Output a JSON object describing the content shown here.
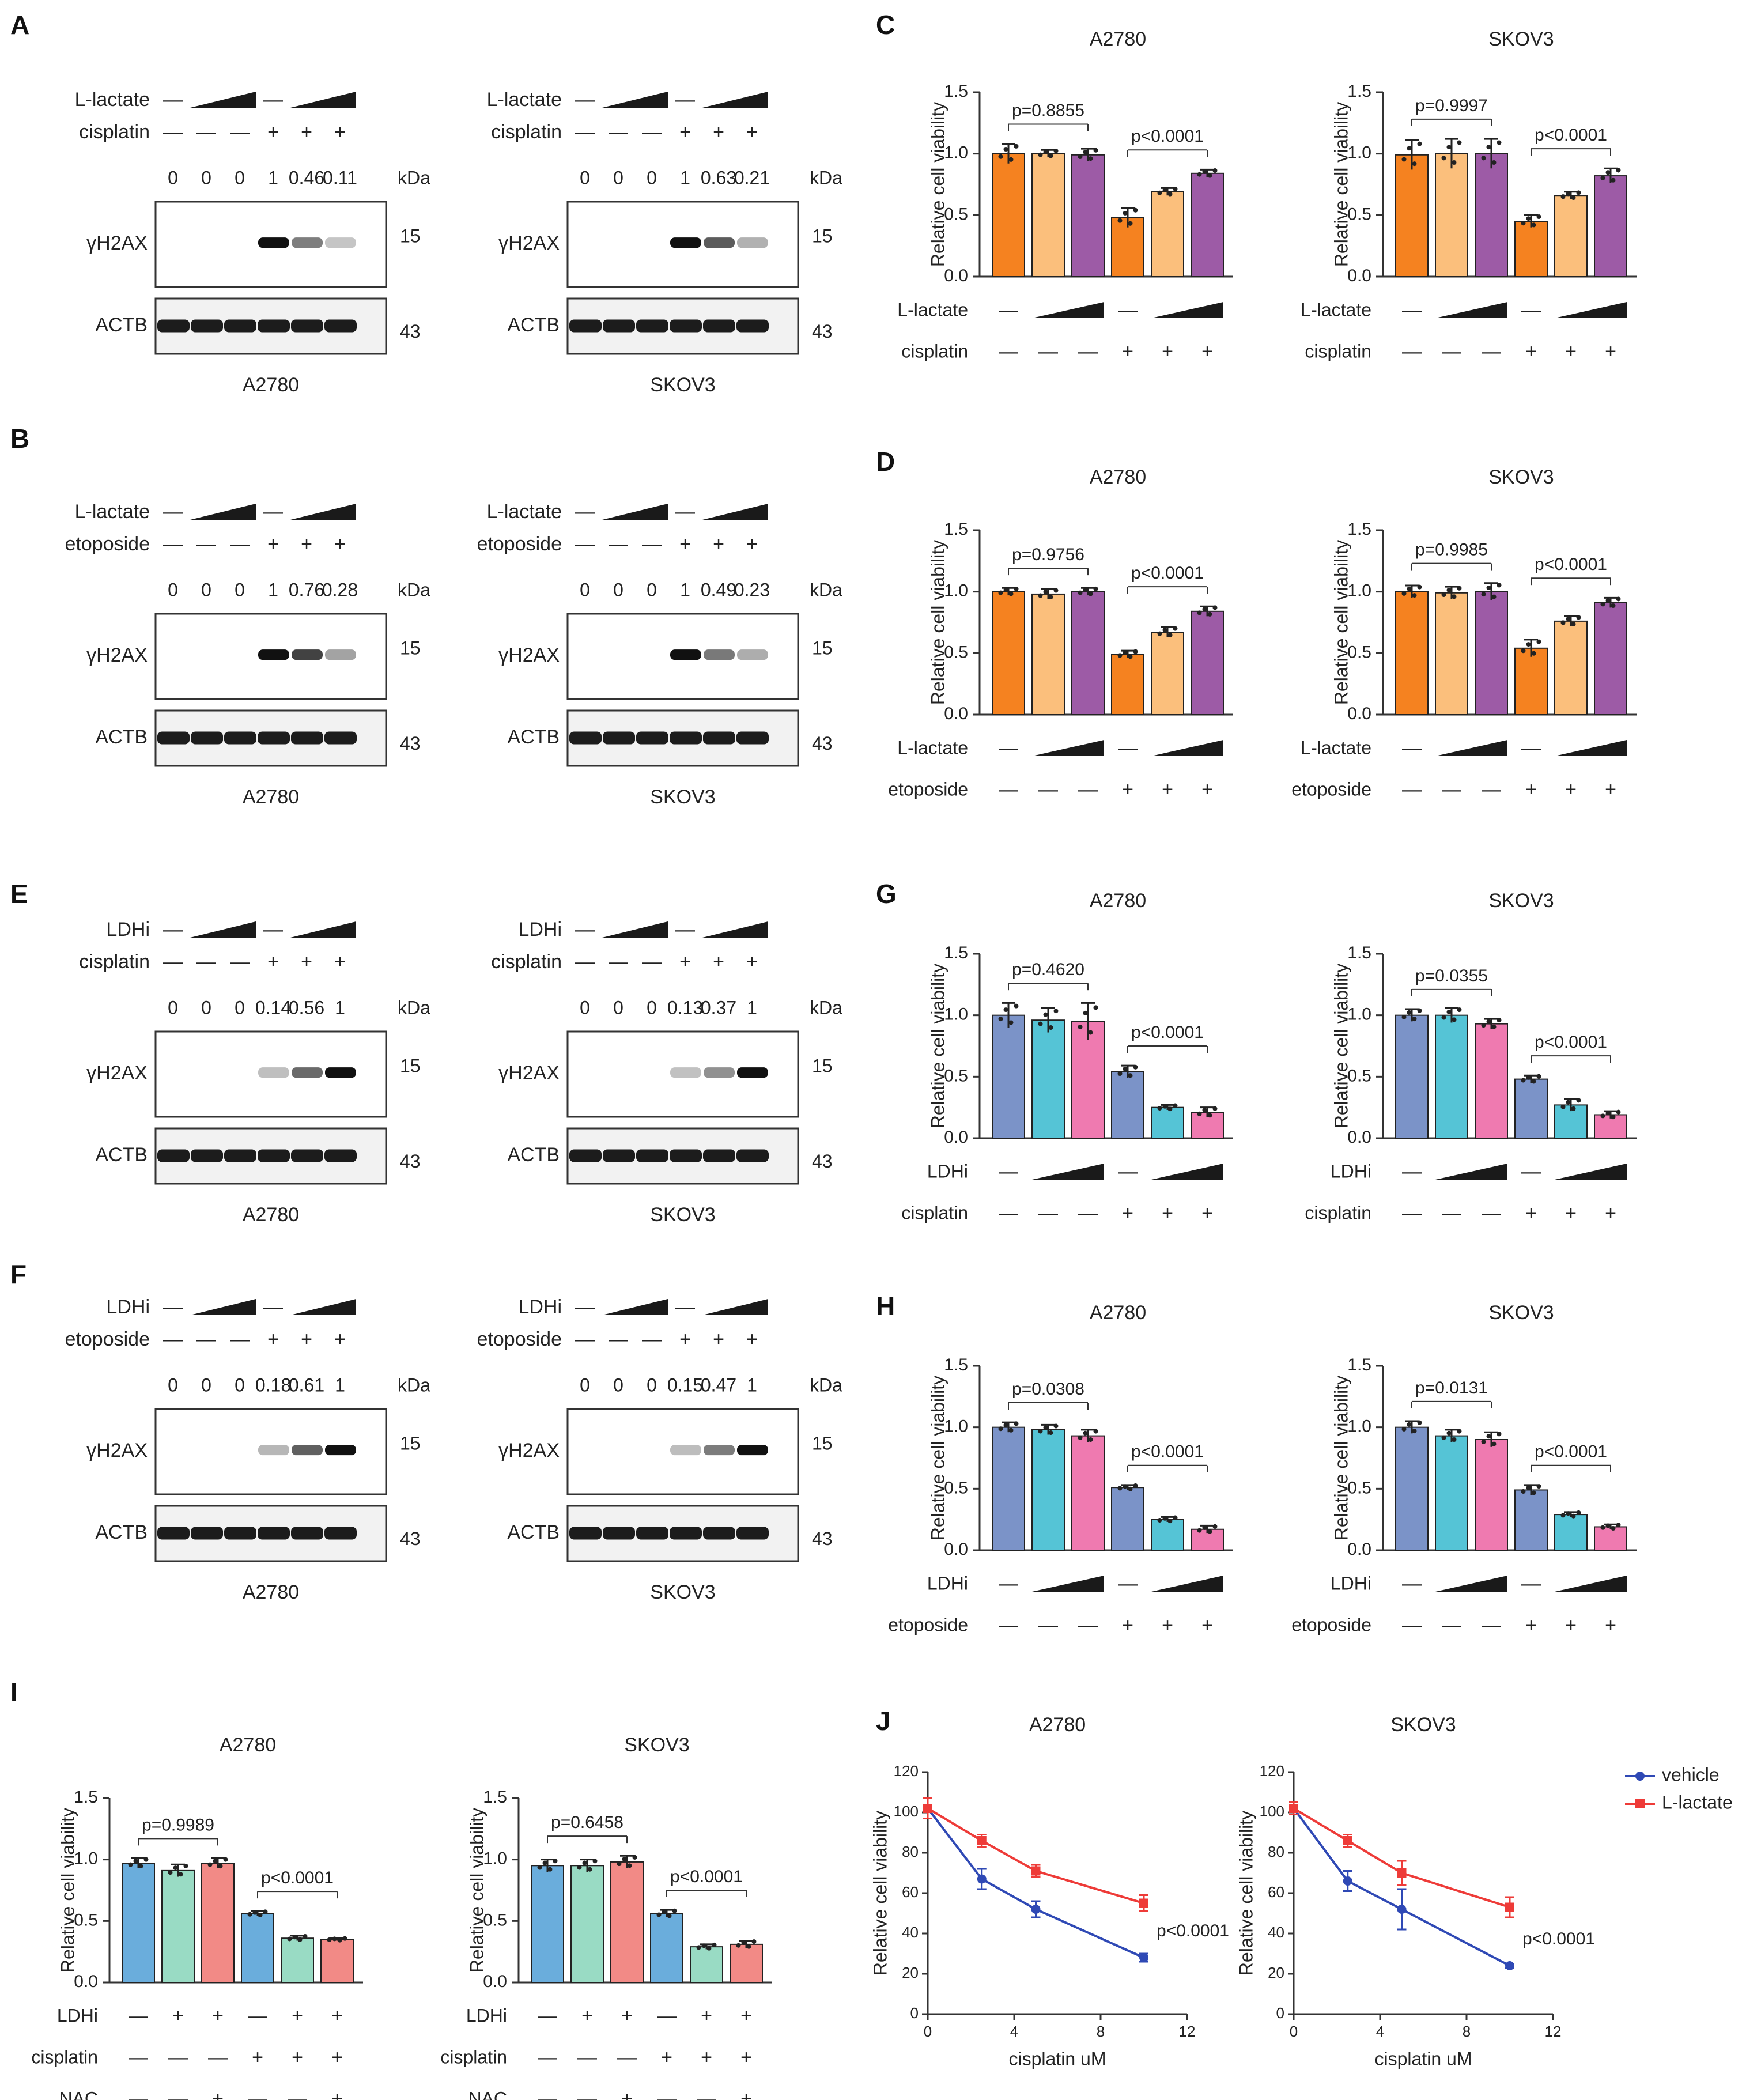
{
  "panel_letters": [
    "A",
    "B",
    "C",
    "D",
    "E",
    "F",
    "G",
    "H",
    "I",
    "J"
  ],
  "units": {
    "kda": "kDa"
  },
  "chart_data": [
    {
      "id": "A",
      "type": "western_blot",
      "blots": [
        {
          "title": "A2780",
          "row_labels": [
            "L-lactate",
            "cisplatin"
          ],
          "rows": [
            [
              "—",
              "ramp",
              "—",
              "ramp"
            ],
            [
              "—",
              "—",
              "—",
              "+",
              "+",
              "+"
            ]
          ],
          "quant": [
            "0",
            "0",
            "0",
            "1",
            "0.46",
            "0.11"
          ],
          "bands": [
            "γH2AX",
            "ACTB"
          ],
          "band_kda": [
            "15",
            "43"
          ],
          "intensity": [
            0,
            0,
            0,
            1,
            0.46,
            0.11
          ]
        },
        {
          "title": "SKOV3",
          "row_labels": [
            "L-lactate",
            "cisplatin"
          ],
          "rows": [
            [
              "—",
              "ramp",
              "—",
              "ramp"
            ],
            [
              "—",
              "—",
              "—",
              "+",
              "+",
              "+"
            ]
          ],
          "quant": [
            "0",
            "0",
            "0",
            "1",
            "0.63",
            "0.21"
          ],
          "bands": [
            "γH2AX",
            "ACTB"
          ],
          "band_kda": [
            "15",
            "43"
          ],
          "intensity": [
            0,
            0,
            0,
            1,
            0.63,
            0.21
          ]
        }
      ]
    },
    {
      "id": "B",
      "type": "western_blot",
      "blots": [
        {
          "title": "A2780",
          "row_labels": [
            "L-lactate",
            "etoposide"
          ],
          "rows": [
            [
              "—",
              "ramp",
              "—",
              "ramp"
            ],
            [
              "—",
              "—",
              "—",
              "+",
              "+",
              "+"
            ]
          ],
          "quant": [
            "0",
            "0",
            "0",
            "1",
            "0.76",
            "0.28"
          ],
          "bands": [
            "γH2AX",
            "ACTB"
          ],
          "band_kda": [
            "15",
            "43"
          ],
          "intensity": [
            0,
            0,
            0,
            1,
            0.76,
            0.28
          ]
        },
        {
          "title": "SKOV3",
          "row_labels": [
            "L-lactate",
            "etoposide"
          ],
          "rows": [
            [
              "—",
              "ramp",
              "—",
              "ramp"
            ],
            [
              "—",
              "—",
              "—",
              "+",
              "+",
              "+"
            ]
          ],
          "quant": [
            "0",
            "0",
            "0",
            "1",
            "0.49",
            "0.23"
          ],
          "bands": [
            "γH2AX",
            "ACTB"
          ],
          "band_kda": [
            "15",
            "43"
          ],
          "intensity": [
            0,
            0,
            0,
            1,
            0.49,
            0.23
          ]
        }
      ]
    },
    {
      "id": "E",
      "type": "western_blot",
      "blots": [
        {
          "title": "A2780",
          "row_labels": [
            "LDHi",
            "cisplatin"
          ],
          "rows": [
            [
              "—",
              "ramp",
              "—",
              "ramp"
            ],
            [
              "—",
              "—",
              "—",
              "+",
              "+",
              "+"
            ]
          ],
          "quant": [
            "0",
            "0",
            "0",
            "0.14",
            "0.56",
            "1"
          ],
          "bands": [
            "γH2AX",
            "ACTB"
          ],
          "band_kda": [
            "15",
            "43"
          ],
          "intensity": [
            0,
            0,
            0,
            0.14,
            0.56,
            1
          ]
        },
        {
          "title": "SKOV3",
          "row_labels": [
            "LDHi",
            "cisplatin"
          ],
          "rows": [
            [
              "—",
              "ramp",
              "—",
              "ramp"
            ],
            [
              "—",
              "—",
              "—",
              "+",
              "+",
              "+"
            ]
          ],
          "quant": [
            "0",
            "0",
            "0",
            "0.13",
            "0.37",
            "1"
          ],
          "bands": [
            "γH2AX",
            "ACTB"
          ],
          "band_kda": [
            "15",
            "43"
          ],
          "intensity": [
            0,
            0,
            0,
            0.13,
            0.37,
            1
          ]
        }
      ]
    },
    {
      "id": "F",
      "type": "western_blot",
      "blots": [
        {
          "title": "A2780",
          "row_labels": [
            "LDHi",
            "etoposide"
          ],
          "rows": [
            [
              "—",
              "ramp",
              "—",
              "ramp"
            ],
            [
              "—",
              "—",
              "—",
              "+",
              "+",
              "+"
            ]
          ],
          "quant": [
            "0",
            "0",
            "0",
            "0.18",
            "0.61",
            "1"
          ],
          "bands": [
            "γH2AX",
            "ACTB"
          ],
          "band_kda": [
            "15",
            "43"
          ],
          "intensity": [
            0,
            0,
            0,
            0.18,
            0.61,
            1
          ]
        },
        {
          "title": "SKOV3",
          "row_labels": [
            "LDHi",
            "etoposide"
          ],
          "rows": [
            [
              "—",
              "ramp",
              "—",
              "ramp"
            ],
            [
              "—",
              "—",
              "—",
              "+",
              "+",
              "+"
            ]
          ],
          "quant": [
            "0",
            "0",
            "0",
            "0.15",
            "0.47",
            "1"
          ],
          "bands": [
            "γH2AX",
            "ACTB"
          ],
          "band_kda": [
            "15",
            "43"
          ],
          "intensity": [
            0,
            0,
            0,
            0.15,
            0.47,
            1
          ]
        }
      ]
    },
    {
      "id": "C",
      "type": "bar",
      "ylabel": "Relative cell viability",
      "ylim": [
        0,
        1.5
      ],
      "yticks": [
        "0.0",
        "0.5",
        "1.0",
        "1.5"
      ],
      "charts": [
        {
          "title": "A2780",
          "values": [
            1.0,
            1.0,
            0.99,
            0.48,
            0.69,
            0.84
          ],
          "errors": [
            0.08,
            0.03,
            0.05,
            0.08,
            0.03,
            0.03
          ],
          "p_values": [
            "p=0.8855",
            "p<0.0001"
          ],
          "row_labels": [
            "L-lactate",
            "cisplatin"
          ],
          "rows": [
            [
              "—",
              "ramp",
              "—",
              "ramp"
            ],
            [
              "—",
              "—",
              "—",
              "+",
              "+",
              "+"
            ]
          ]
        },
        {
          "title": "SKOV3",
          "values": [
            0.99,
            1.0,
            1.0,
            0.45,
            0.66,
            0.82
          ],
          "errors": [
            0.12,
            0.12,
            0.12,
            0.05,
            0.03,
            0.06
          ],
          "p_values": [
            "p=0.9997",
            "p<0.0001"
          ],
          "row_labels": [
            "L-lactate",
            "cisplatin"
          ],
          "rows": [
            [
              "—",
              "ramp",
              "—",
              "ramp"
            ],
            [
              "—",
              "—",
              "—",
              "+",
              "+",
              "+"
            ]
          ]
        }
      ],
      "colors": [
        "#f58220",
        "#fbbf7c",
        "#9d5ba6",
        "#f58220",
        "#fbbf7c",
        "#9d5ba6"
      ]
    },
    {
      "id": "D",
      "type": "bar",
      "ylabel": "Relative cell viability",
      "ylim": [
        0,
        1.5
      ],
      "yticks": [
        "0.0",
        "0.5",
        "1.0",
        "1.5"
      ],
      "charts": [
        {
          "title": "A2780",
          "values": [
            1.0,
            0.98,
            1.0,
            0.49,
            0.67,
            0.84
          ],
          "errors": [
            0.03,
            0.04,
            0.03,
            0.03,
            0.04,
            0.04
          ],
          "p_values": [
            "p=0.9756",
            "p<0.0001"
          ],
          "row_labels": [
            "L-lactate",
            "etoposide"
          ],
          "rows": [
            [
              "—",
              "ramp",
              "—",
              "ramp"
            ],
            [
              "—",
              "—",
              "—",
              "+",
              "+",
              "+"
            ]
          ]
        },
        {
          "title": "SKOV3",
          "values": [
            1.0,
            0.99,
            1.0,
            0.54,
            0.76,
            0.91
          ],
          "errors": [
            0.05,
            0.05,
            0.07,
            0.07,
            0.04,
            0.04
          ],
          "p_values": [
            "p=0.9985",
            "p<0.0001"
          ],
          "row_labels": [
            "L-lactate",
            "etoposide"
          ],
          "rows": [
            [
              "—",
              "ramp",
              "—",
              "ramp"
            ],
            [
              "—",
              "—",
              "—",
              "+",
              "+",
              "+"
            ]
          ]
        }
      ],
      "colors": [
        "#f58220",
        "#fbbf7c",
        "#9d5ba6",
        "#f58220",
        "#fbbf7c",
        "#9d5ba6"
      ]
    },
    {
      "id": "G",
      "type": "bar",
      "ylabel": "Relative cell viability",
      "ylim": [
        0,
        1.5
      ],
      "yticks": [
        "0.0",
        "0.5",
        "1.0",
        "1.5"
      ],
      "charts": [
        {
          "title": "A2780",
          "values": [
            1.0,
            0.96,
            0.95,
            0.54,
            0.25,
            0.21
          ],
          "errors": [
            0.1,
            0.1,
            0.15,
            0.05,
            0.02,
            0.04
          ],
          "p_values": [
            "p=0.4620",
            "p<0.0001"
          ],
          "row_labels": [
            "LDHi",
            "cisplatin"
          ],
          "rows": [
            [
              "—",
              "ramp",
              "—",
              "ramp"
            ],
            [
              "—",
              "—",
              "—",
              "+",
              "+",
              "+"
            ]
          ]
        },
        {
          "title": "SKOV3",
          "values": [
            1.0,
            1.0,
            0.93,
            0.48,
            0.27,
            0.19
          ],
          "errors": [
            0.05,
            0.06,
            0.04,
            0.03,
            0.05,
            0.03
          ],
          "p_values": [
            "p=0.0355",
            "p<0.0001"
          ],
          "row_labels": [
            "LDHi",
            "cisplatin"
          ],
          "rows": [
            [
              "—",
              "ramp",
              "—",
              "ramp"
            ],
            [
              "—",
              "—",
              "—",
              "+",
              "+",
              "+"
            ]
          ]
        }
      ],
      "colors": [
        "#7b93c8",
        "#55c4d6",
        "#ef7ab0",
        "#7b93c8",
        "#55c4d6",
        "#ef7ab0"
      ]
    },
    {
      "id": "H",
      "type": "bar",
      "ylabel": "Relative cell viability",
      "ylim": [
        0,
        1.5
      ],
      "yticks": [
        "0.0",
        "0.5",
        "1.0",
        "1.5"
      ],
      "charts": [
        {
          "title": "A2780",
          "values": [
            1.0,
            0.98,
            0.93,
            0.51,
            0.25,
            0.17
          ],
          "errors": [
            0.04,
            0.04,
            0.05,
            0.02,
            0.02,
            0.03
          ],
          "p_values": [
            "p=0.0308",
            "p<0.0001"
          ],
          "row_labels": [
            "LDHi",
            "etoposide"
          ],
          "rows": [
            [
              "—",
              "ramp",
              "—",
              "ramp"
            ],
            [
              "—",
              "—",
              "—",
              "+",
              "+",
              "+"
            ]
          ]
        },
        {
          "title": "SKOV3",
          "values": [
            1.0,
            0.93,
            0.9,
            0.49,
            0.29,
            0.19
          ],
          "errors": [
            0.05,
            0.05,
            0.06,
            0.04,
            0.02,
            0.02
          ],
          "p_values": [
            "p=0.0131",
            "p<0.0001"
          ],
          "row_labels": [
            "LDHi",
            "etoposide"
          ],
          "rows": [
            [
              "—",
              "ramp",
              "—",
              "ramp"
            ],
            [
              "—",
              "—",
              "—",
              "+",
              "+",
              "+"
            ]
          ]
        }
      ],
      "colors": [
        "#7b93c8",
        "#55c4d6",
        "#ef7ab0",
        "#7b93c8",
        "#55c4d6",
        "#ef7ab0"
      ]
    },
    {
      "id": "I",
      "type": "bar",
      "ylabel": "Relative cell viability",
      "ylim": [
        0,
        1.5
      ],
      "yticks": [
        "0.0",
        "0.5",
        "1.0",
        "1.5"
      ],
      "charts": [
        {
          "title": "A2780",
          "values": [
            0.97,
            0.91,
            0.97,
            0.56,
            0.36,
            0.35
          ],
          "errors": [
            0.04,
            0.05,
            0.04,
            0.02,
            0.02,
            0.01
          ],
          "p_values": [
            "p=0.9989",
            "p<0.0001"
          ],
          "row_labels": [
            "LDHi",
            "cisplatin",
            "NAC"
          ],
          "rows": [
            [
              "—",
              "+",
              "+",
              "—",
              "+",
              "+"
            ],
            [
              "—",
              "—",
              "—",
              "+",
              "+",
              "+"
            ],
            [
              "—",
              "—",
              "+",
              "—",
              "—",
              "+"
            ]
          ]
        },
        {
          "title": "SKOV3",
          "values": [
            0.95,
            0.95,
            0.98,
            0.56,
            0.29,
            0.31
          ],
          "errors": [
            0.05,
            0.05,
            0.05,
            0.03,
            0.02,
            0.03
          ],
          "p_values": [
            "p=0.6458",
            "p<0.0001"
          ],
          "row_labels": [
            "LDHi",
            "cisplatin",
            "NAC"
          ],
          "rows": [
            [
              "—",
              "+",
              "+",
              "—",
              "+",
              "+"
            ],
            [
              "—",
              "—",
              "—",
              "+",
              "+",
              "+"
            ],
            [
              "—",
              "—",
              "+",
              "—",
              "—",
              "+"
            ]
          ]
        }
      ],
      "colors": [
        "#6aaddc",
        "#99dbc4",
        "#f28a86",
        "#6aaddc",
        "#99dbc4",
        "#f28a86"
      ]
    },
    {
      "id": "J",
      "type": "line",
      "ylabel": "Relative cell viability",
      "xlabel": "cisplatin uM",
      "xlim": [
        0,
        12
      ],
      "ylim": [
        0,
        120
      ],
      "xticks": [
        "0",
        "4",
        "8",
        "12"
      ],
      "yticks": [
        "0",
        "20",
        "40",
        "60",
        "80",
        "100",
        "120"
      ],
      "legend": [
        "vehicle",
        "L-lactate"
      ],
      "legend_colors": [
        "#2f49b5",
        "#ee3b38"
      ],
      "charts": [
        {
          "title": "A2780",
          "p_value": "p<0.0001",
          "x": [
            0,
            2.5,
            5,
            10
          ],
          "series": [
            {
              "name": "vehicle",
              "values": [
                102,
                67,
                52,
                28
              ],
              "errors": [
                5,
                5,
                4,
                2
              ]
            },
            {
              "name": "L-lactate",
              "values": [
                102,
                86,
                71,
                55
              ],
              "errors": [
                5,
                3,
                3,
                4
              ]
            }
          ]
        },
        {
          "title": "SKOV3",
          "p_value": "p<0.0001",
          "x": [
            0,
            2.5,
            5,
            10
          ],
          "series": [
            {
              "name": "vehicle",
              "values": [
                102,
                66,
                52,
                24
              ],
              "errors": [
                3,
                5,
                10,
                1
              ]
            },
            {
              "name": "L-lactate",
              "values": [
                102,
                86,
                70,
                53
              ],
              "errors": [
                3,
                3,
                6,
                5
              ]
            }
          ]
        }
      ]
    }
  ]
}
